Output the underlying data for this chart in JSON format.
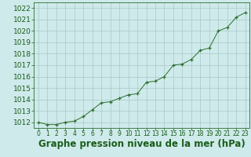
{
  "x": [
    0,
    1,
    2,
    3,
    4,
    5,
    6,
    7,
    8,
    9,
    10,
    11,
    12,
    13,
    14,
    15,
    16,
    17,
    18,
    19,
    20,
    21,
    22,
    23
  ],
  "y": [
    1012.0,
    1011.8,
    1011.8,
    1012.0,
    1012.1,
    1012.5,
    1013.1,
    1013.7,
    1013.8,
    1014.1,
    1014.4,
    1014.5,
    1015.5,
    1015.6,
    1016.0,
    1017.0,
    1017.1,
    1017.5,
    1018.3,
    1018.5,
    1020.0,
    1020.3,
    1021.2,
    1021.6
  ],
  "xlim": [
    -0.5,
    23.5
  ],
  "ylim": [
    1011.5,
    1022.5
  ],
  "yticks": [
    1012,
    1013,
    1014,
    1015,
    1016,
    1017,
    1018,
    1019,
    1020,
    1021,
    1022
  ],
  "xticks": [
    0,
    1,
    2,
    3,
    4,
    5,
    6,
    7,
    8,
    9,
    10,
    11,
    12,
    13,
    14,
    15,
    16,
    17,
    18,
    19,
    20,
    21,
    22,
    23
  ],
  "line_color": "#2d6e2d",
  "marker_color": "#2d6e2d",
  "bg_color": "#ceeaea",
  "grid_color": "#aac8c8",
  "xlabel": "Graphe pression niveau de la mer (hPa)",
  "xlabel_color": "#1a5c1a",
  "tick_color": "#1a5c1a",
  "xlabel_fontsize": 8.5,
  "ytick_fontsize": 6.5,
  "xtick_fontsize": 5.5,
  "spine_color": "#2d6e2d"
}
